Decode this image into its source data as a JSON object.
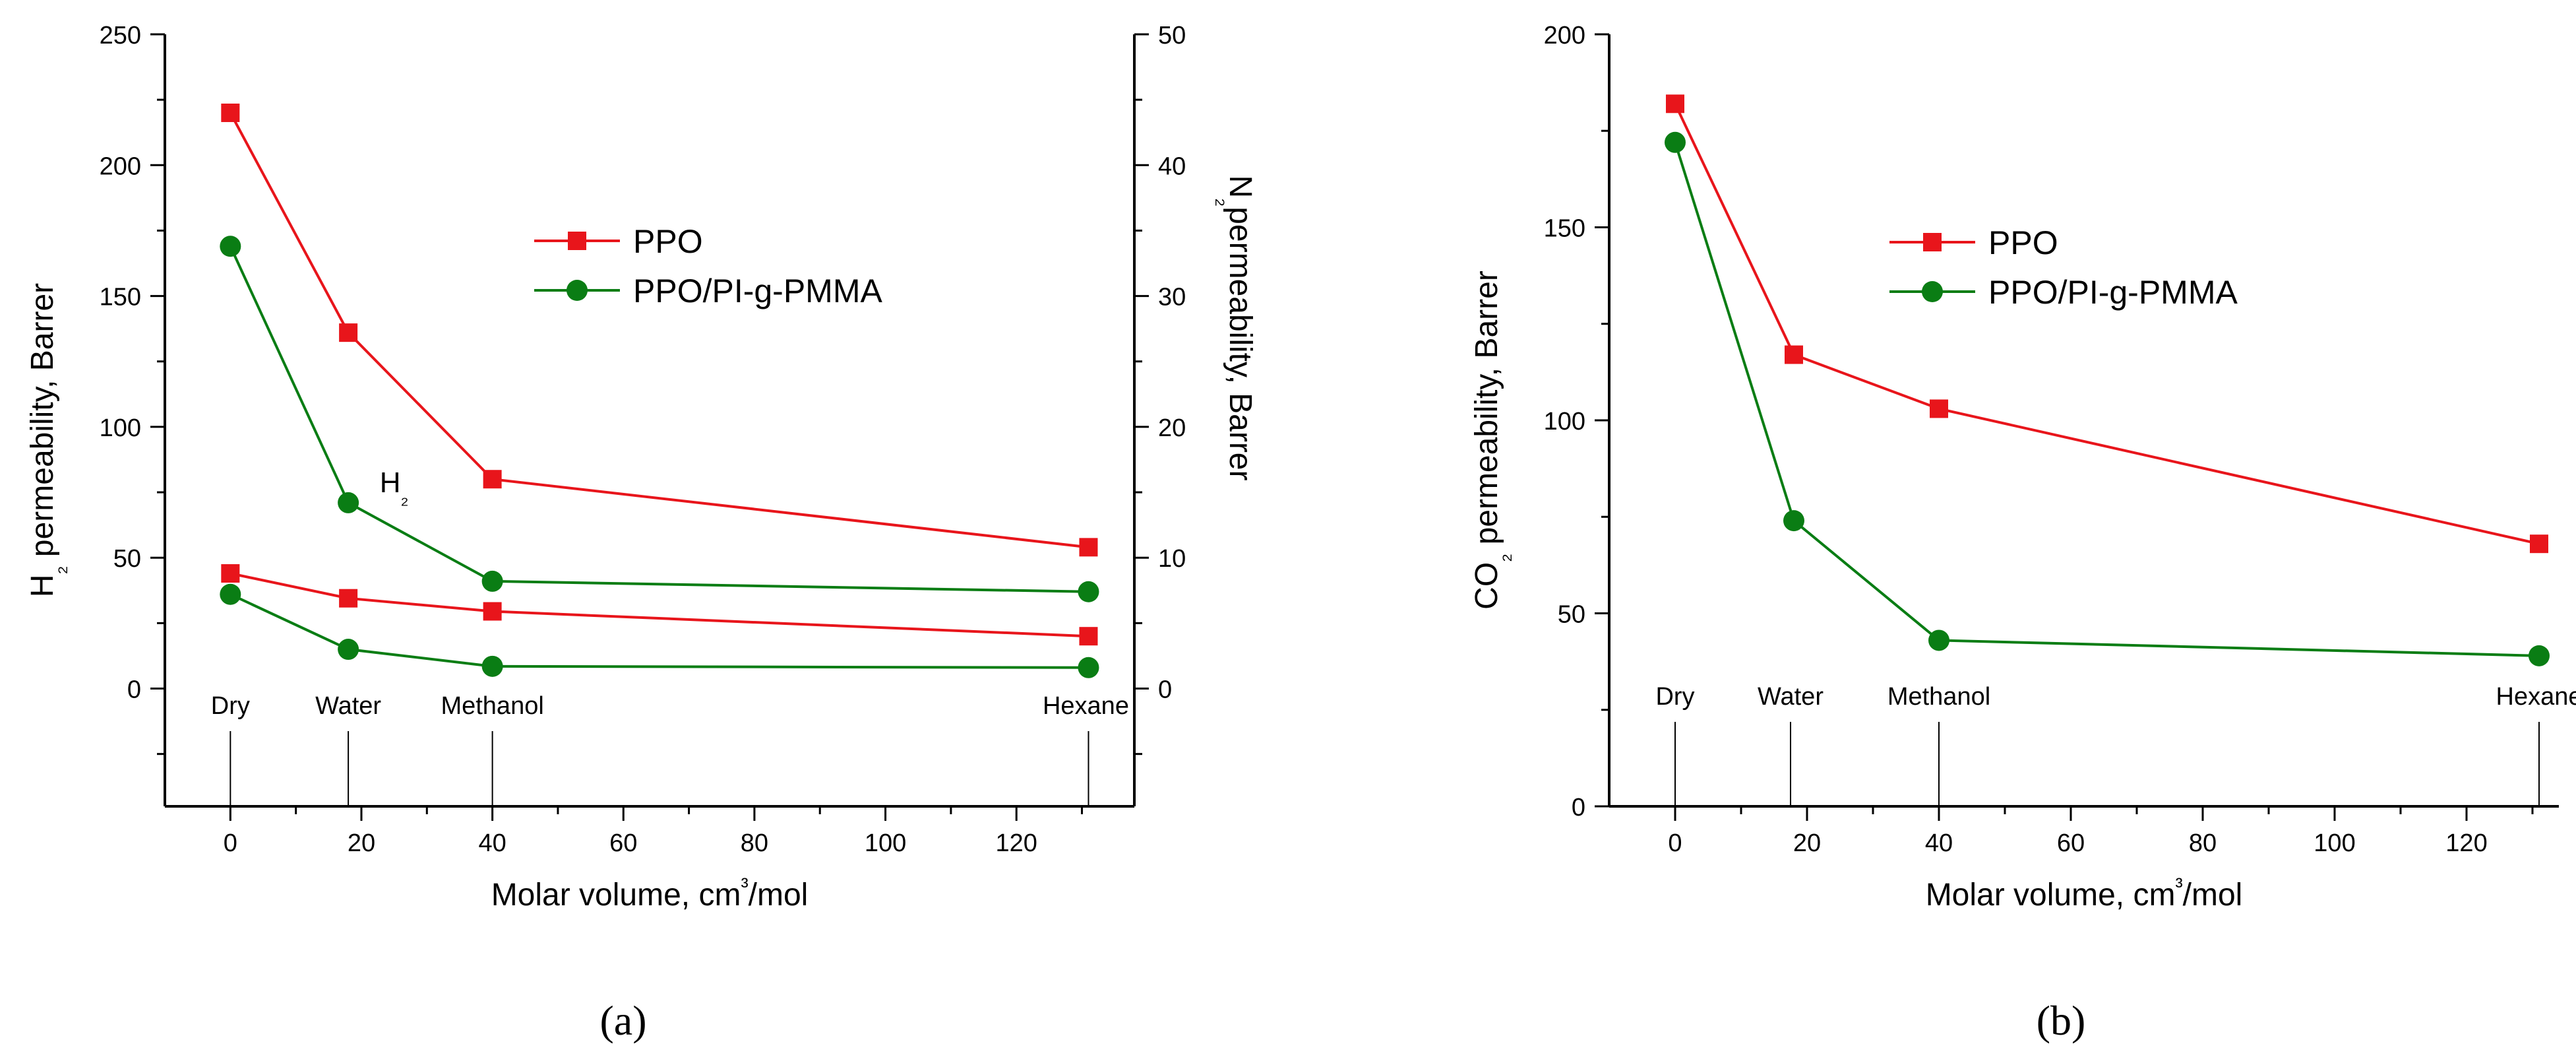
{
  "colors": {
    "ppo": "#e8151b",
    "ppo_pi": "#0a7d14",
    "axis": "#000000"
  },
  "chart_data": [
    {
      "panel": "(a)",
      "type": "line",
      "xlabel": "Molar volume, cm³/mol",
      "ylabel_left": "H₂ permeability, Barrer",
      "ylabel_right": "N₂permeability, Barrer",
      "xlim": [
        -10,
        138
      ],
      "ylim_left": [
        -45,
        250
      ],
      "ylim_right": [
        -9,
        50
      ],
      "x_ticks": [
        "0",
        "20",
        "40",
        "60",
        "80",
        "100",
        "120"
      ],
      "y_ticks_left": [
        "0",
        "50",
        "100",
        "150",
        "200",
        "250"
      ],
      "y_ticks_right": [
        "0",
        "10",
        "20",
        "30",
        "40",
        "50"
      ],
      "solvents": [
        {
          "label": "Dry",
          "x": 0
        },
        {
          "label": "Water",
          "x": 18
        },
        {
          "label": "Methanol",
          "x": 40
        },
        {
          "label": "Hexane",
          "x": 131
        }
      ],
      "annotation": {
        "text": "H₂",
        "x": 25,
        "y": 75
      },
      "legend": [
        "PPO",
        "PPO/PI-g-PMMA"
      ],
      "series": [
        {
          "name": "PPO",
          "gas": "H2",
          "axis": "left",
          "marker": "square",
          "x": [
            0,
            18,
            40,
            131
          ],
          "y": [
            220,
            136,
            80,
            54
          ]
        },
        {
          "name": "PPO/PI-g-PMMA",
          "gas": "H2",
          "axis": "left",
          "marker": "circle",
          "x": [
            0,
            18,
            40,
            131
          ],
          "y": [
            169,
            71,
            41,
            37
          ]
        },
        {
          "name": "PPO",
          "gas": "N2",
          "axis": "right",
          "marker": "square",
          "x": [
            0,
            18,
            40,
            131
          ],
          "y": [
            8.8,
            6.9,
            5.9,
            4.0
          ]
        },
        {
          "name": "PPO/PI-g-PMMA",
          "gas": "N2",
          "axis": "right",
          "marker": "circle",
          "x": [
            0,
            18,
            40,
            131
          ],
          "y": [
            7.2,
            3.0,
            1.7,
            1.6
          ]
        }
      ]
    },
    {
      "panel": "(b)",
      "type": "line",
      "xlabel": "Molar volume, cm³/mol",
      "ylabel_left": "CO₂ permeability, Barrer",
      "xlim": [
        -10,
        134
      ],
      "ylim_left": [
        0,
        200
      ],
      "x_ticks": [
        "0",
        "20",
        "40",
        "60",
        "80",
        "100",
        "120"
      ],
      "y_ticks_left": [
        "0",
        "50",
        "100",
        "150",
        "200"
      ],
      "solvents": [
        {
          "label": "Dry",
          "x": 0
        },
        {
          "label": "Water",
          "x": 17.5
        },
        {
          "label": "Methanol",
          "x": 40
        },
        {
          "label": "Hexane",
          "x": 131
        }
      ],
      "legend": [
        "PPO",
        "PPO/PI-g-PMMA"
      ],
      "series": [
        {
          "name": "PPO",
          "gas": "CO2",
          "axis": "left",
          "marker": "square",
          "x": [
            0,
            18,
            40,
            131
          ],
          "y": [
            182,
            117,
            103,
            68
          ]
        },
        {
          "name": "PPO/PI-g-PMMA",
          "gas": "CO2",
          "axis": "left",
          "marker": "circle",
          "x": [
            0,
            18,
            40,
            131
          ],
          "y": [
            172,
            74,
            43,
            39
          ]
        }
      ]
    }
  ]
}
